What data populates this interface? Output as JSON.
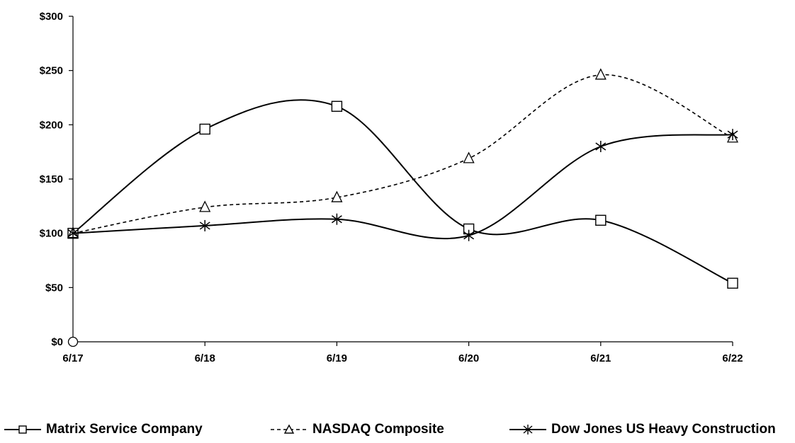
{
  "chart_data": {
    "type": "line",
    "categories": [
      "6/17",
      "6/18",
      "6/19",
      "6/20",
      "6/21",
      "6/22"
    ],
    "ylim": [
      0,
      300
    ],
    "yticks": [
      0,
      50,
      100,
      150,
      200,
      250,
      300
    ],
    "ytick_labels": [
      "$0",
      "$50",
      "$100",
      "$150",
      "$200",
      "$250",
      "$300"
    ],
    "grid": false,
    "legend_position": "bottom",
    "origin_marker": "circle",
    "series": [
      {
        "name": "Matrix Service Company",
        "values": [
          100,
          196,
          217,
          104,
          112,
          54
        ],
        "marker": "square",
        "dash": "solid",
        "color": "#000000"
      },
      {
        "name": "NASDAQ Composite",
        "values": [
          100,
          124,
          133,
          169,
          246,
          188
        ],
        "marker": "triangle",
        "dash": "dashed",
        "color": "#000000"
      },
      {
        "name": "Dow Jones US Heavy Construction",
        "values": [
          100,
          107,
          113,
          98,
          180,
          191
        ],
        "marker": "asterisk",
        "dash": "solid",
        "color": "#000000"
      }
    ]
  }
}
